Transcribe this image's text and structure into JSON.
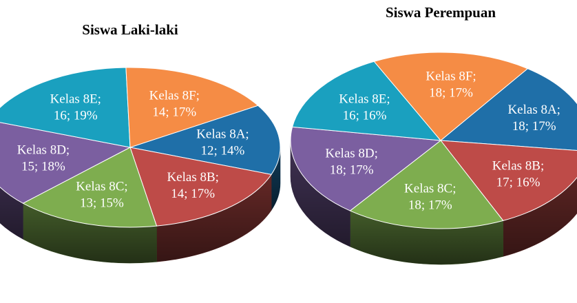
{
  "chart_data": [
    {
      "type": "pie",
      "title": "Siswa Laki-laki",
      "slices": [
        {
          "label": "Kelas 8A",
          "value": 12,
          "percent": "14%",
          "color": "#1F6FA8"
        },
        {
          "label": "Kelas 8B",
          "value": 14,
          "percent": "17%",
          "color": "#BE4B48"
        },
        {
          "label": "Kelas 8C",
          "value": 13,
          "percent": "15%",
          "color": "#7EAD4F"
        },
        {
          "label": "Kelas 8D",
          "value": 15,
          "percent": "18%",
          "color": "#7B5FA0"
        },
        {
          "label": "Kelas 8E",
          "value": 16,
          "percent": "19%",
          "color": "#1AA0BF"
        },
        {
          "label": "Kelas 8F",
          "value": 14,
          "percent": "17%",
          "color": "#F58C45"
        }
      ]
    },
    {
      "type": "pie",
      "title": "Siswa Perempuan",
      "slices": [
        {
          "label": "Kelas 8A",
          "value": 18,
          "percent": "17%",
          "color": "#1F6FA8"
        },
        {
          "label": "Kelas 8B",
          "value": 17,
          "percent": "16%",
          "color": "#BE4B48"
        },
        {
          "label": "Kelas 8C",
          "value": 18,
          "percent": "17%",
          "color": "#7EAD4F"
        },
        {
          "label": "Kelas 8D",
          "value": 18,
          "percent": "17%",
          "color": "#7B5FA0"
        },
        {
          "label": "Kelas 8E",
          "value": 16,
          "percent": "16%",
          "color": "#1AA0BF"
        },
        {
          "label": "Kelas 8F",
          "value": 18,
          "percent": "17%",
          "color": "#F58C45"
        }
      ]
    }
  ]
}
